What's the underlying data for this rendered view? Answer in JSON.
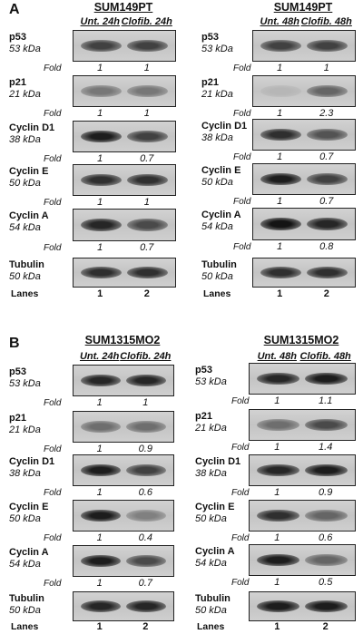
{
  "panels": [
    {
      "letter": "A",
      "columns": [
        {
          "cell_line": "SUM149PT",
          "conditions": [
            "Unt. 24h",
            "Clofib. 24h"
          ],
          "fold_label": "Fold",
          "lanes_label": "Lanes",
          "lane_numbers": [
            "1",
            "2"
          ],
          "blots": [
            {
              "name": "p53",
              "kda": "53 kDa",
              "folds": [
                "1",
                "1"
              ]
            },
            {
              "name": "p21",
              "kda": "21 kDa",
              "folds": [
                "1",
                "1"
              ]
            },
            {
              "name": "Cyclin D1",
              "kda": "38 kDa",
              "folds": [
                "1",
                "0.7"
              ]
            },
            {
              "name": "Cyclin E",
              "kda": "50 kDa",
              "folds": [
                "1",
                "1"
              ]
            },
            {
              "name": "Cyclin A",
              "kda": "54 kDa",
              "folds": [
                "1",
                "0.7"
              ]
            },
            {
              "name": "Tubulin",
              "kda": "50 kDa",
              "folds": []
            }
          ]
        },
        {
          "cell_line": "SUM149PT",
          "conditions": [
            "Unt. 48h",
            "Clofib. 48h"
          ],
          "fold_label": "Fold",
          "lanes_label": "Lanes",
          "lane_numbers": [
            "1",
            "2"
          ],
          "blots": [
            {
              "name": "p53",
              "kda": "53 kDa",
              "folds": [
                "1",
                "1"
              ]
            },
            {
              "name": "p21",
              "kda": "21 kDa",
              "folds": [
                "1",
                "2.3"
              ]
            },
            {
              "name": "Cyclin D1",
              "kda": "38 kDa",
              "folds": [
                "1",
                "0.7"
              ]
            },
            {
              "name": "Cyclin E",
              "kda": "50 kDa",
              "folds": [
                "1",
                "0.7"
              ]
            },
            {
              "name": "Cyclin A",
              "kda": "54 kDa",
              "folds": [
                "1",
                "0.8"
              ]
            },
            {
              "name": "Tubulin",
              "kda": "50 kDa",
              "folds": []
            }
          ]
        }
      ]
    },
    {
      "letter": "B",
      "columns": [
        {
          "cell_line": "SUM1315MO2",
          "conditions": [
            "Unt. 24h",
            "Clofib. 24h"
          ],
          "fold_label": "Fold",
          "lanes_label": "Lanes",
          "lane_numbers": [
            "1",
            "2"
          ],
          "blots": [
            {
              "name": "p53",
              "kda": "53 kDa",
              "folds": [
                "1",
                "1"
              ]
            },
            {
              "name": "p21",
              "kda": "21 kDa",
              "folds": [
                "1",
                "0.9"
              ]
            },
            {
              "name": "Cyclin D1",
              "kda": "38 kDa",
              "folds": [
                "1",
                "0.6"
              ]
            },
            {
              "name": "Cyclin E",
              "kda": "50 kDa",
              "folds": [
                "1",
                "0.4"
              ]
            },
            {
              "name": "Cyclin A",
              "kda": "54 kDa",
              "folds": [
                "1",
                "0.7"
              ]
            },
            {
              "name": "Tubulin",
              "kda": "50 kDa",
              "folds": []
            }
          ]
        },
        {
          "cell_line": "SUM1315MO2",
          "conditions": [
            "Unt. 48h",
            "Clofib. 48h"
          ],
          "fold_label": "Fold",
          "lanes_label": "Lanes",
          "lane_numbers": [
            "1",
            "2"
          ],
          "blots": [
            {
              "name": "p53",
              "kda": "53 kDa",
              "folds": [
                "1",
                "1.1"
              ]
            },
            {
              "name": "p21",
              "kda": "21 kDa",
              "folds": [
                "1",
                "1.4"
              ]
            },
            {
              "name": "Cyclin D1",
              "kda": "38 kDa",
              "folds": [
                "1",
                "0.9"
              ]
            },
            {
              "name": "Cyclin E",
              "kda": "50 kDa",
              "folds": [
                "1",
                "0.6"
              ]
            },
            {
              "name": "Cyclin A",
              "kda": "54 kDa",
              "folds": [
                "1",
                "0.5"
              ]
            },
            {
              "name": "Tubulin",
              "kda": "50 kDa",
              "folds": []
            }
          ]
        }
      ]
    }
  ]
}
